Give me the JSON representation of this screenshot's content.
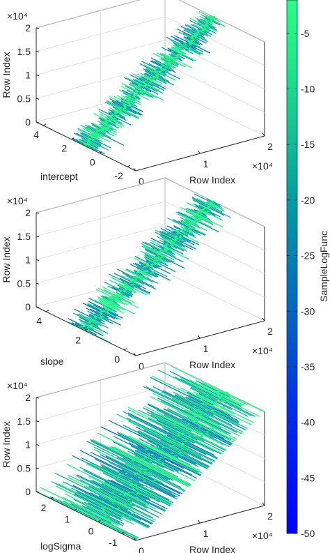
{
  "colors": {
    "colormap": [
      "#0000ff",
      "#0019f8",
      "#0032e6",
      "#005ac8",
      "#007cb4",
      "#009ea0",
      "#14c194",
      "#1ee68c",
      "#28ff88"
    ],
    "axis": "#262626",
    "grid": "#dcdcdc"
  },
  "colorbar": {
    "label": "SampleLogFunc",
    "ticks": [
      "-5",
      "-10",
      "-15",
      "-20",
      "-25",
      "-30",
      "-35",
      "-40",
      "-45",
      "-50"
    ],
    "tick_values": [
      -5,
      -10,
      -15,
      -20,
      -25,
      -30,
      -35,
      -40,
      -45,
      -50
    ],
    "range": [
      -50,
      -2
    ]
  },
  "chart_data": [
    {
      "type": "waterfall-3d",
      "x_label": "Row Index",
      "x_ticks": [
        "0",
        "1",
        "2"
      ],
      "x_exponent": "×10⁴",
      "x_range": [
        0,
        20000
      ],
      "y_label": "intercept",
      "y_ticks": [
        "4",
        "2",
        "0",
        "-2"
      ],
      "z_label": "Row Index",
      "z_ticks": [
        "0",
        "0.5",
        "1",
        "1.5",
        "2"
      ],
      "z_exponent": "×10⁴",
      "z_range": [
        0,
        20000
      ],
      "ridge_y": 1.0,
      "spread": 0.6
    },
    {
      "type": "waterfall-3d",
      "x_label": "Row Index",
      "x_ticks": [
        "0",
        "1",
        "2"
      ],
      "x_exponent": "×10⁴",
      "x_range": [
        0,
        20000
      ],
      "y_label": "slope",
      "y_ticks": [
        "4",
        "2",
        "0"
      ],
      "z_label": "Row Index",
      "z_ticks": [
        "0",
        "0.5",
        "1",
        "1.5",
        "2"
      ],
      "z_exponent": "×10⁴",
      "z_range": [
        0,
        20000
      ],
      "ridge_y": 2.0,
      "spread": 0.5
    },
    {
      "type": "waterfall-3d",
      "x_label": "Row Index",
      "x_ticks": [
        "0",
        "1",
        "2"
      ],
      "x_exponent": "×10⁴",
      "x_range": [
        0,
        20000
      ],
      "y_label": "logSigma",
      "y_ticks": [
        "2",
        "1",
        "0",
        "-1"
      ],
      "z_label": "Row Index",
      "z_ticks": [
        "0",
        "0.5",
        "1",
        "1.5",
        "2"
      ],
      "z_exponent": "×10⁴",
      "z_range": [
        0,
        20000
      ],
      "ridge_y": 0.0,
      "spread": 1.4
    }
  ]
}
